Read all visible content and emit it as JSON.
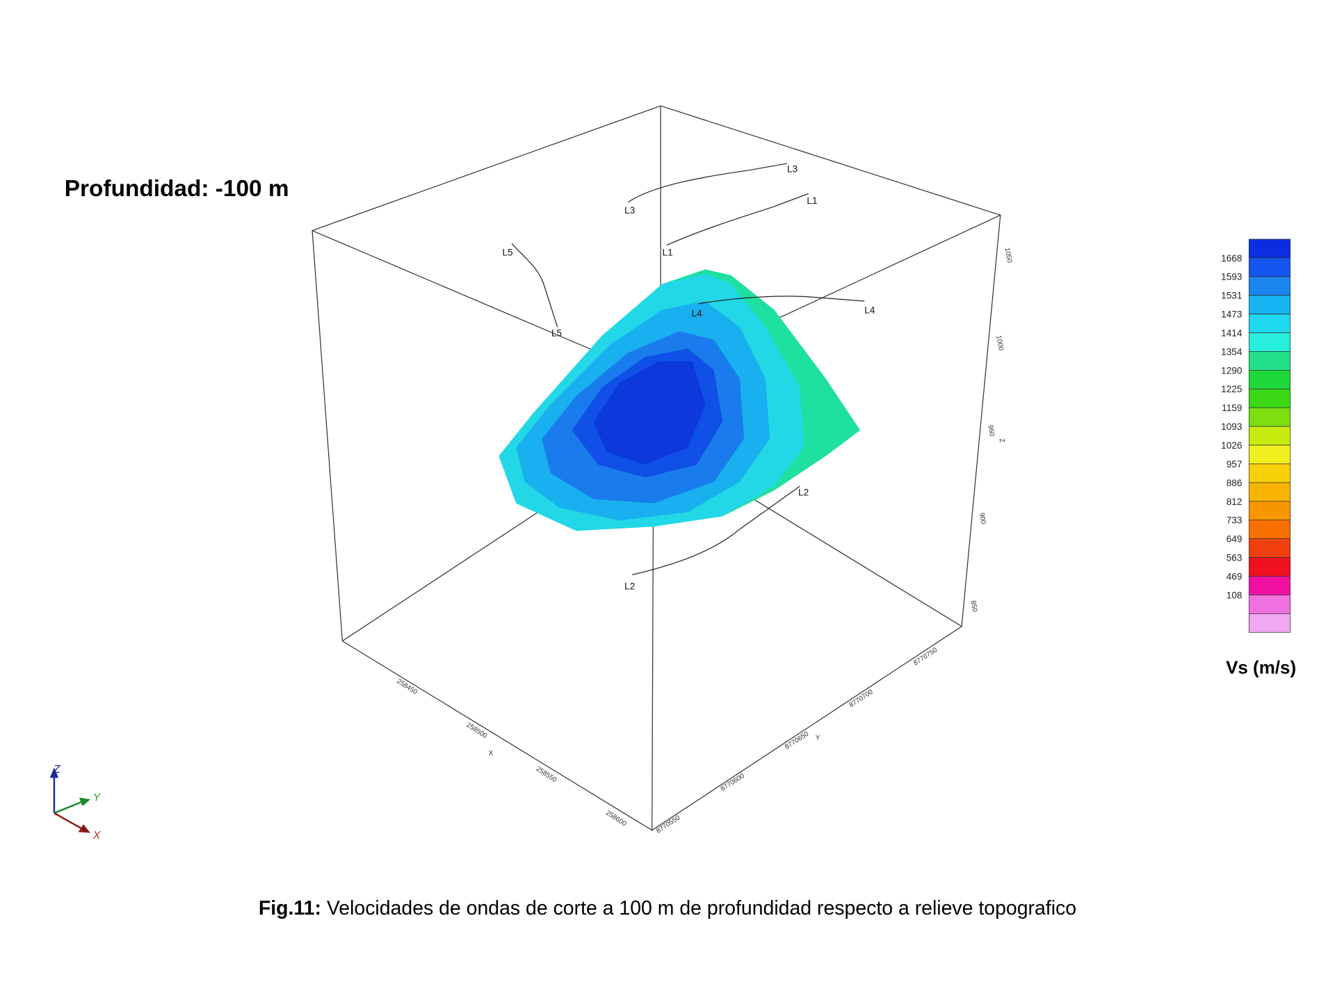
{
  "figure": {
    "heading": "Profundidad: -100 m",
    "line_labels": [
      {
        "start": "L3",
        "end": "L3"
      },
      {
        "start": "L1",
        "end": "L1"
      },
      {
        "start": "L5",
        "end": "L5"
      },
      {
        "start": "L4",
        "end": "L4"
      },
      {
        "start": "L2",
        "end": "L2"
      }
    ],
    "axes": {
      "x": {
        "name": "X",
        "ticks": [
          "258450",
          "258500",
          "258550",
          "258600"
        ]
      },
      "y": {
        "name": "Y",
        "ticks": [
          "8770550",
          "8770600",
          "8770650",
          "8770700",
          "8770750"
        ]
      },
      "z": {
        "name": "Z",
        "ticks": [
          "1050",
          "1000",
          "950",
          "900",
          "850"
        ]
      }
    },
    "triad": {
      "z": "Z",
      "y": "Y",
      "x": "X"
    },
    "colorbar": {
      "title": "Vs (m/s)",
      "levels": [
        1668,
        1593,
        1531,
        1473,
        1414,
        1354,
        1290,
        1225,
        1159,
        1093,
        1026,
        957,
        886,
        812,
        733,
        649,
        563,
        469,
        108
      ],
      "colors": [
        "#0a2ee0",
        "#1556f0",
        "#1a86ee",
        "#16b4f0",
        "#20d8f0",
        "#28eedc",
        "#22e08a",
        "#1ed83a",
        "#3ad816",
        "#7ce010",
        "#c8ec10",
        "#f0f020",
        "#f8d008",
        "#f8b400",
        "#f89600",
        "#f87000",
        "#f04010",
        "#f01020",
        "#f010a0",
        "#f070e0",
        "#f0a8f0"
      ]
    }
  },
  "caption": {
    "label": "Fig.11:",
    "text": " Velocidades de ondas de corte a 100 m de profundidad respecto a relieve topografico"
  }
}
